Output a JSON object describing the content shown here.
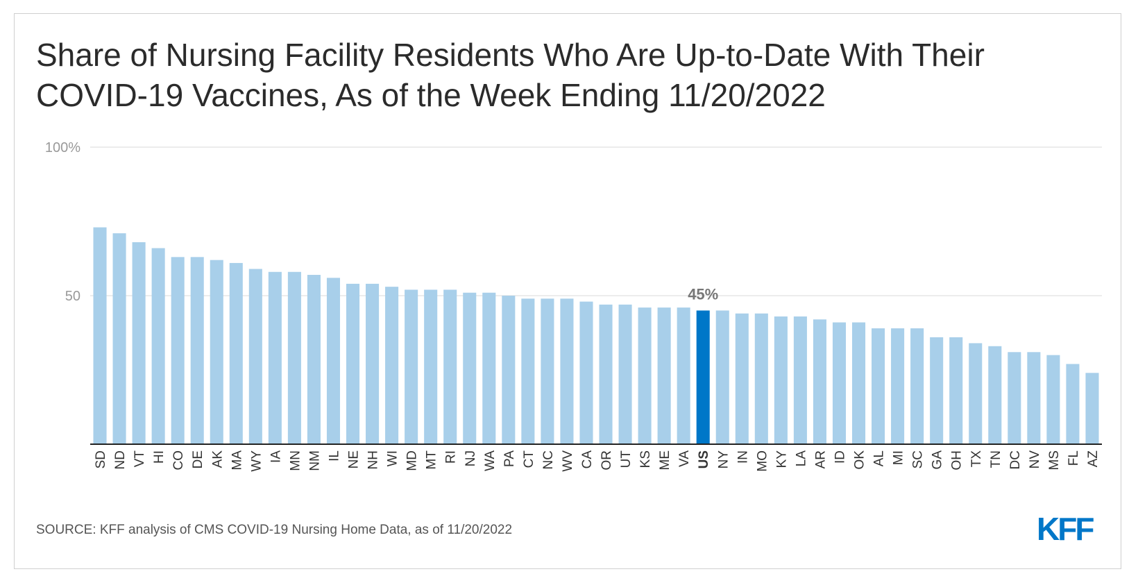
{
  "title": "Share of Nursing Facility Residents Who Are Up-to-Date With Their COVID-19 Vaccines, As of the Week Ending 11/20/2022",
  "source": "SOURCE: KFF analysis of CMS COVID-19 Nursing Home Data, as of 11/20/2022",
  "logo_text": "KFF",
  "colors": {
    "bar": "#a8cfea",
    "highlight": "#0077c8",
    "gridline": "#e6e6e6",
    "axis": "#222222",
    "tick_text": "#999999",
    "label_text": "#333333",
    "annotation": "#777777"
  },
  "chart_data": {
    "type": "bar",
    "categories": [
      "SD",
      "ND",
      "VT",
      "HI",
      "CO",
      "DE",
      "AK",
      "MA",
      "WY",
      "IA",
      "MN",
      "NM",
      "IL",
      "NE",
      "NH",
      "WI",
      "MD",
      "MT",
      "RI",
      "NJ",
      "WA",
      "PA",
      "CT",
      "NC",
      "WV",
      "CA",
      "OR",
      "UT",
      "KS",
      "ME",
      "VA",
      "US",
      "NY",
      "IN",
      "MO",
      "KY",
      "LA",
      "AR",
      "ID",
      "OK",
      "AL",
      "MI",
      "SC",
      "GA",
      "OH",
      "TX",
      "TN",
      "DC",
      "NV",
      "MS",
      "FL",
      "AZ"
    ],
    "values": [
      73,
      71,
      68,
      66,
      63,
      63,
      62,
      61,
      59,
      58,
      58,
      57,
      56,
      54,
      54,
      53,
      52,
      52,
      52,
      51,
      51,
      50,
      49,
      49,
      49,
      48,
      47,
      47,
      46,
      46,
      46,
      45,
      45,
      44,
      44,
      43,
      43,
      42,
      41,
      41,
      39,
      39,
      39,
      36,
      36,
      34,
      33,
      31,
      31,
      30,
      27,
      24
    ],
    "highlight": "US",
    "highlight_label": "45%",
    "y_ticks": [
      {
        "value": 50,
        "label": "50"
      },
      {
        "value": 100,
        "label": "100%"
      }
    ],
    "ylim": [
      0,
      100
    ],
    "grid": true,
    "xlabel": "",
    "ylabel": ""
  }
}
